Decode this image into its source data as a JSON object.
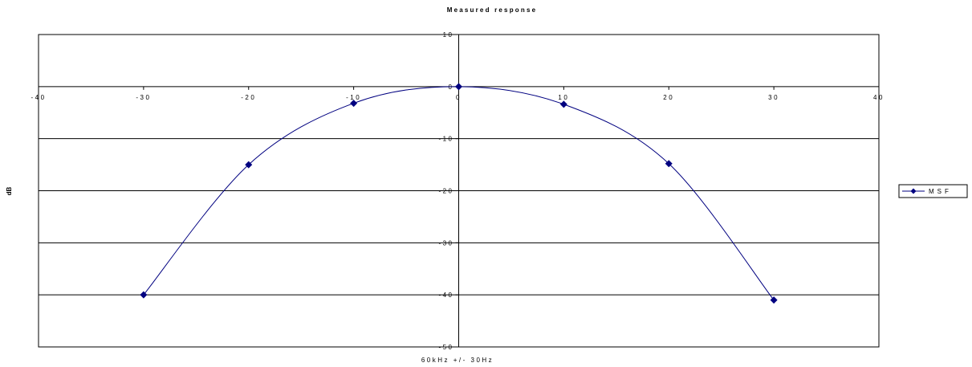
{
  "chart_data": {
    "type": "line",
    "title": "Measured response",
    "xlabel": "60kHz +/- 30Hz",
    "ylabel": "dB",
    "xlim": [
      -40,
      40
    ],
    "ylim": [
      -50,
      10
    ],
    "x_ticks": [
      -40,
      -30,
      -20,
      -10,
      0,
      10,
      20,
      30,
      40
    ],
    "x_tick_labels": [
      "-40",
      "-30",
      "-20",
      "-10",
      "0",
      "10",
      "20",
      "30",
      "40"
    ],
    "y_ticks": [
      10,
      0,
      -10,
      -20,
      -30,
      -40,
      -50
    ],
    "y_tick_labels": [
      "10",
      "0",
      "-10",
      "-20",
      "-30",
      "-40",
      "-50"
    ],
    "grid": "horizontal",
    "legend_position": "right",
    "smooth": true,
    "series": [
      {
        "name": "MSF",
        "color": "#000080",
        "marker": "diamond",
        "x": [
          -30,
          -20,
          -10,
          0,
          10,
          20,
          30
        ],
        "y": [
          -40,
          -15,
          -3.2,
          0,
          -3.4,
          -14.8,
          -41
        ]
      }
    ]
  }
}
